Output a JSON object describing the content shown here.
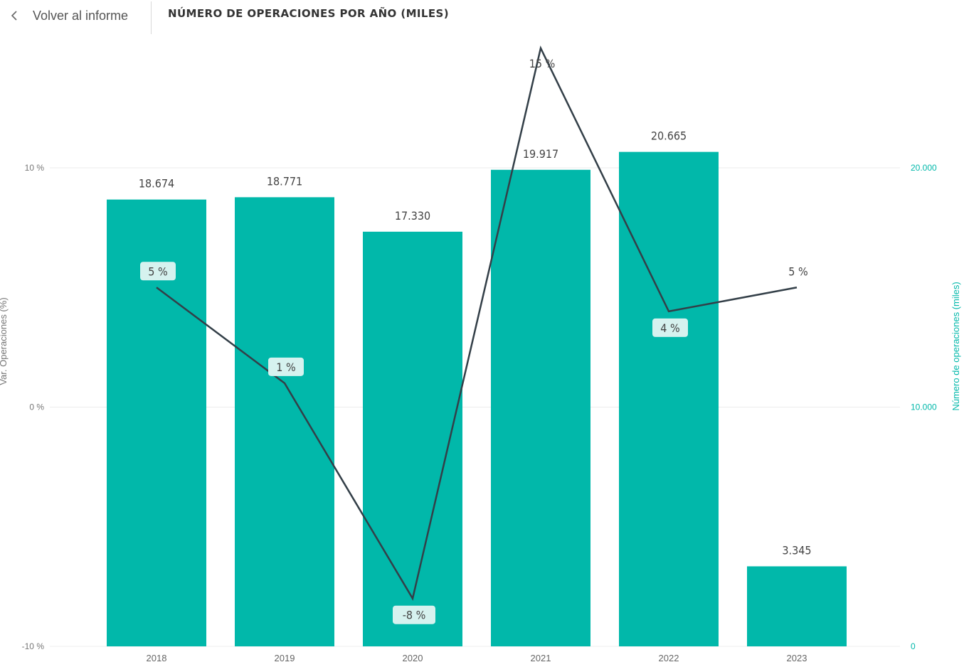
{
  "header": {
    "back_label": "Volver al informe",
    "title": "NÚMERO DE OPERACIONES POR AÑO (MILES)"
  },
  "chart_data": {
    "type": "bar",
    "categories": [
      "2018",
      "2019",
      "2020",
      "2021",
      "2022",
      "2023"
    ],
    "series": [
      {
        "name": "Número de operaciones (miles)",
        "values": [
          18674,
          18771,
          17330,
          19917,
          20665,
          3345
        ],
        "labels": [
          "18.674",
          "18.771",
          "17.330",
          "19.917",
          "20.665",
          "3.345"
        ],
        "axis": "right",
        "type": "bar"
      },
      {
        "name": "Var. Operaciones (%)",
        "values": [
          5,
          1,
          -8,
          15,
          4,
          5
        ],
        "labels": [
          "5 %",
          "1 %",
          "-8 %",
          "15 %",
          "4 %",
          "5 %"
        ],
        "axis": "left",
        "type": "line"
      }
    ],
    "left_axis": {
      "title": "Var. Operaciones (%)",
      "ylim": [
        -10,
        10
      ],
      "ticks": [
        {
          "value": 10,
          "label": "10 %"
        },
        {
          "value": 0,
          "label": "0 %"
        },
        {
          "value": -10,
          "label": "-10 %"
        }
      ]
    },
    "right_axis": {
      "title": "Número de operaciones (miles)",
      "ylim": [
        0,
        20000
      ],
      "ticks": [
        {
          "value": 20000,
          "label": "20.000"
        },
        {
          "value": 10000,
          "label": "10.000"
        },
        {
          "value": 0,
          "label": "0"
        }
      ]
    },
    "grid": true,
    "colors": {
      "bar": "#01b8aa",
      "line": "#333f48",
      "right_axis": "#01b8aa",
      "left_axis": "#777777",
      "label_box": "#d6f2ef"
    }
  }
}
